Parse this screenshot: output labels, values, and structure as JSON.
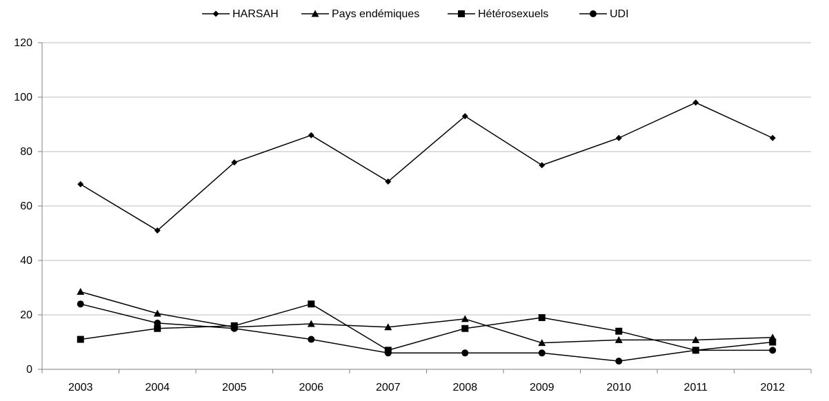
{
  "chart_data": {
    "type": "line",
    "categories": [
      "2003",
      "2004",
      "2005",
      "2006",
      "2007",
      "2008",
      "2009",
      "2010",
      "2011",
      "2012"
    ],
    "ylim": [
      0,
      120
    ],
    "yticks": [
      0,
      20,
      40,
      60,
      80,
      100,
      120
    ],
    "grid": "horizontal",
    "legend_position": "top",
    "series": [
      {
        "name": "HARSAH",
        "marker": "diamond",
        "values": [
          68,
          51,
          76,
          86,
          69,
          93,
          75,
          85,
          98,
          85
        ]
      },
      {
        "name": "Pays endémiques",
        "marker": "triangle",
        "values": [
          28.5,
          20.5,
          15.5,
          16.7,
          15.5,
          18.5,
          9.7,
          10.8,
          10.8,
          11.7
        ]
      },
      {
        "name": "Hétérosexuels",
        "marker": "square",
        "values": [
          11,
          15,
          16,
          24,
          7,
          15,
          19,
          14,
          7,
          10
        ]
      },
      {
        "name": "UDI",
        "marker": "circle",
        "values": [
          24,
          17,
          15,
          11,
          6,
          6,
          6,
          3,
          7,
          7
        ]
      }
    ],
    "colors": {
      "line": "#000000",
      "grid": "#bfbfbf",
      "axis": "#808080"
    }
  }
}
